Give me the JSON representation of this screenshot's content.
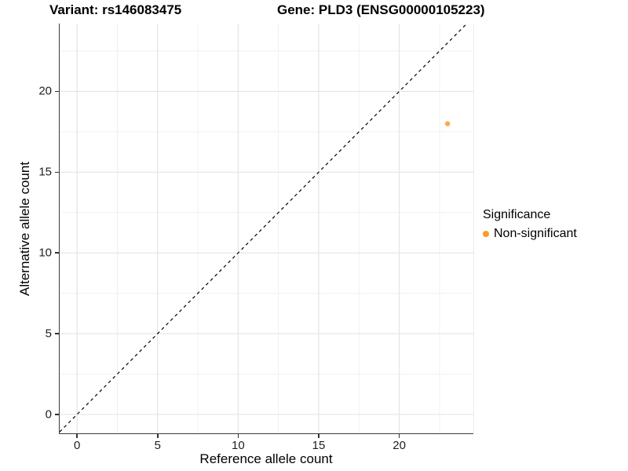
{
  "header": {
    "variant_title": "Variant: rs146083475",
    "gene_title": "Gene: PLD3 (ENSG00000105223)"
  },
  "chart_data": {
    "type": "scatter",
    "titles": {
      "left": "Variant: rs146083475",
      "right": "Gene: PLD3 (ENSG00000105223)"
    },
    "xlabel": "Reference allele count",
    "ylabel": "Alternative allele count",
    "xlim": [
      -1.08,
      24.6
    ],
    "ylim": [
      -1.17,
      24.2
    ],
    "x_major_ticks": [
      0,
      5,
      10,
      15,
      20
    ],
    "y_major_ticks": [
      0,
      5,
      10,
      15,
      20
    ],
    "minor_tick_interval": 2.5,
    "grid": true,
    "identity_line": {
      "equation": "y = x",
      "style": "dashed",
      "color": "#000000"
    },
    "series": [
      {
        "name": "Non-significant",
        "color": "#FBA94F",
        "points": [
          {
            "x": 23,
            "y": 18
          }
        ]
      }
    ],
    "legend": {
      "title": "Significance",
      "position": "right",
      "items": [
        {
          "label": "Non-significant",
          "color": "#F99D27"
        }
      ]
    },
    "colors": {
      "grid_major": "#E4E4E4",
      "grid_minor": "#F1F1F1",
      "axis_line": "#3C3C3C"
    }
  }
}
